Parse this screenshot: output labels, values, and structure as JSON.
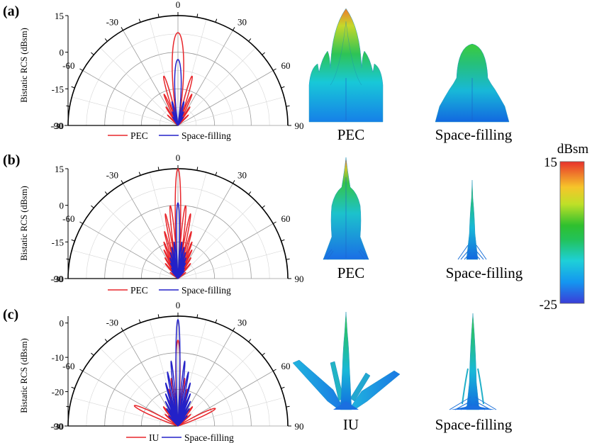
{
  "colors": {
    "pec": "#e8262b",
    "space_filling": "#2321c8",
    "iu": "#e8262b"
  },
  "chart_data": [
    {
      "type": "line",
      "subtype": "polar",
      "panel": "(a)",
      "ylabel": "Bistatic RCS (dBsm)",
      "angle_ticks": [
        "-90",
        "-60",
        "-30",
        "0",
        "30",
        "60",
        "90"
      ],
      "radial_ticks": [
        "-30",
        "-15",
        "0",
        "15"
      ],
      "rlim": [
        -30,
        15
      ],
      "angle_range": [
        -90,
        90
      ],
      "series": [
        {
          "name": "PEC",
          "color": "#e8262b",
          "lobes": [
            [
              0,
              8,
              10
            ],
            [
              16,
              -9,
              4.5
            ],
            [
              -16,
              -9,
              4.5
            ],
            [
              24,
              -16,
              3.5
            ],
            [
              -24,
              -16,
              3.5
            ],
            [
              33,
              -21,
              3
            ],
            [
              -33,
              -21,
              3
            ],
            [
              45,
              -24,
              3
            ],
            [
              -45,
              -24,
              3
            ]
          ]
        },
        {
          "name": "Space-filling",
          "color": "#2321c8",
          "lobes": [
            [
              0,
              -3,
              8
            ],
            [
              14,
              -20,
              4
            ],
            [
              -14,
              -20,
              4
            ],
            [
              22,
              -24,
              3
            ],
            [
              -22,
              -24,
              3
            ],
            [
              32,
              -26,
              3
            ],
            [
              -32,
              -26,
              3
            ]
          ]
        }
      ]
    },
    {
      "type": "line",
      "subtype": "polar",
      "panel": "(b)",
      "ylabel": "Bistatic RCS (dBsm)",
      "angle_ticks": [
        "-90",
        "-60",
        "-30",
        "0",
        "30",
        "60",
        "90"
      ],
      "radial_ticks": [
        "-30",
        "-15",
        "0",
        "15"
      ],
      "rlim": [
        -30,
        15
      ],
      "angle_range": [
        -90,
        90
      ],
      "series": [
        {
          "name": "PEC",
          "color": "#e8262b",
          "lobes": [
            [
              0,
              15,
              4
            ],
            [
              6,
              0,
              3
            ],
            [
              -6,
              0,
              3
            ],
            [
              11,
              -3,
              2.5
            ],
            [
              -11,
              -3,
              2.5
            ],
            [
              16,
              -10,
              2.5
            ],
            [
              -16,
              -10,
              2.5
            ],
            [
              21,
              -14,
              2.5
            ],
            [
              -21,
              -14,
              2.5
            ],
            [
              26,
              -17,
              2.5
            ],
            [
              -26,
              -17,
              2.5
            ],
            [
              32,
              -20,
              2.5
            ],
            [
              -32,
              -20,
              2.5
            ],
            [
              40,
              -22,
              3
            ],
            [
              -40,
              -22,
              3
            ],
            [
              52,
              -26,
              3
            ],
            [
              -52,
              -26,
              3
            ]
          ]
        },
        {
          "name": "Space-filling",
          "color": "#2321c8",
          "lobes": [
            [
              0,
              1,
              3.5
            ],
            [
              6,
              -15,
              2.5
            ],
            [
              -6,
              -15,
              2.5
            ],
            [
              11,
              -17,
              2.5
            ],
            [
              -11,
              -17,
              2.5
            ],
            [
              16,
              -19,
              2
            ],
            [
              -16,
              -19,
              2
            ],
            [
              21,
              -21,
              2
            ],
            [
              -21,
              -21,
              2
            ],
            [
              26,
              -23,
              2
            ],
            [
              -26,
              -23,
              2
            ],
            [
              32,
              -25,
              2
            ],
            [
              -32,
              -25,
              2
            ],
            [
              40,
              -26,
              2.5
            ],
            [
              -40,
              -26,
              2.5
            ]
          ]
        }
      ]
    },
    {
      "type": "line",
      "subtype": "polar",
      "panel": "(c)",
      "ylabel": "Bistatic RCS (dBsm)",
      "angle_ticks": [
        "-90",
        "-60",
        "-30",
        "0",
        "30",
        "60",
        "90"
      ],
      "radial_ticks": [
        "-30",
        "-20",
        "-10",
        "0"
      ],
      "rlim": [
        -30,
        2
      ],
      "angle_range": [
        -90,
        90
      ],
      "series": [
        {
          "name": "IU",
          "color": "#e8262b",
          "lobes": [
            [
              0,
              -5,
              4
            ],
            [
              -65,
              -16,
              6
            ],
            [
              65,
              -18,
              6
            ],
            [
              -37,
              -23,
              4
            ],
            [
              37,
              -23,
              4
            ],
            [
              8,
              -16,
              2.5
            ],
            [
              -8,
              -16,
              2.5
            ],
            [
              14,
              -19,
              2.5
            ],
            [
              -14,
              -19,
              2.5
            ],
            [
              20,
              -22,
              2.5
            ],
            [
              -20,
              -22,
              2.5
            ],
            [
              27,
              -24,
              2.5
            ],
            [
              -27,
              -24,
              2.5
            ],
            [
              48,
              -25,
              3
            ],
            [
              -48,
              -25,
              3
            ]
          ]
        },
        {
          "name": "Space-filling",
          "color": "#2321c8",
          "lobes": [
            [
              0,
              1,
              3
            ],
            [
              6,
              -11,
              2
            ],
            [
              -6,
              -11,
              2
            ],
            [
              11,
              -14,
              2
            ],
            [
              -11,
              -14,
              2
            ],
            [
              16,
              -17,
              2
            ],
            [
              -16,
              -17,
              2
            ],
            [
              21,
              -20,
              2
            ],
            [
              -21,
              -20,
              2
            ],
            [
              27,
              -22,
              2
            ],
            [
              -27,
              -22,
              2
            ],
            [
              33,
              -24,
              2.5
            ],
            [
              -33,
              -24,
              2.5
            ],
            [
              42,
              -26,
              2.5
            ],
            [
              -42,
              -26,
              2.5
            ]
          ]
        }
      ]
    }
  ],
  "images": [
    {
      "panel": "(a)",
      "left_caption": "PEC",
      "right_caption": "Space-filling"
    },
    {
      "panel": "(b)",
      "left_caption": "PEC",
      "right_caption": "Space-filling"
    },
    {
      "panel": "(c)",
      "left_caption": "IU",
      "right_caption": "Space-filling"
    }
  ],
  "colorbar": {
    "unit": "dBsm",
    "max_label": "15",
    "min_label": "-25",
    "range": [
      -25,
      15
    ]
  }
}
